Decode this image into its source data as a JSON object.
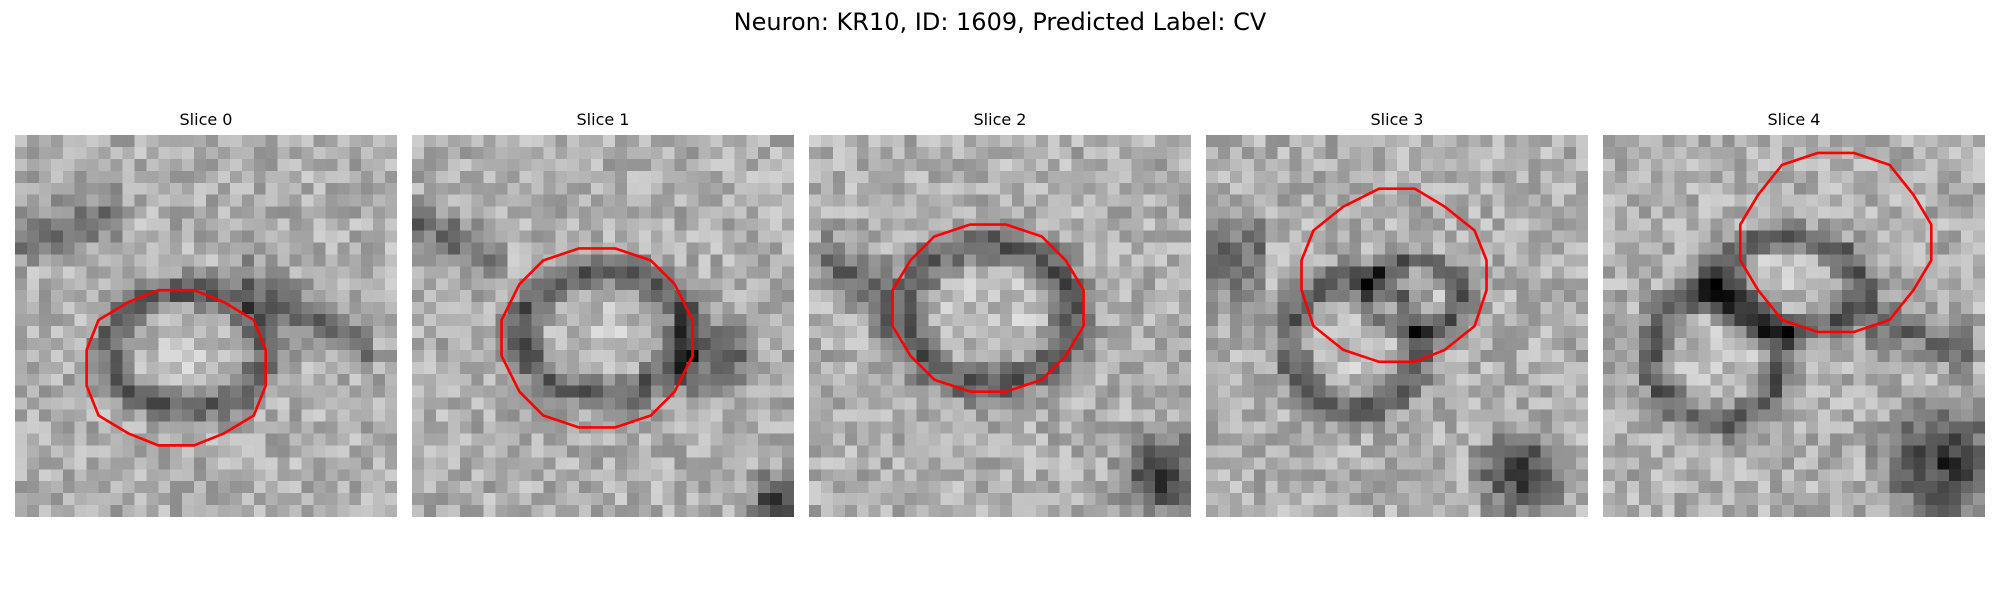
{
  "figure": {
    "title": "Neuron: KR10, ID: 1609, Predicted Label: CV"
  },
  "panels": [
    {
      "title": "Slice 0"
    },
    {
      "title": "Slice 1"
    },
    {
      "title": "Slice 2"
    },
    {
      "title": "Slice 3"
    },
    {
      "title": "Slice 4"
    }
  ],
  "colors": {
    "contour": "#ff0000",
    "background": "#ffffff"
  },
  "image": {
    "colormap": "grayscale",
    "grid": "32x32 pixelated EM crop",
    "contour_shape": "red polygonal outline around vesicle"
  }
}
